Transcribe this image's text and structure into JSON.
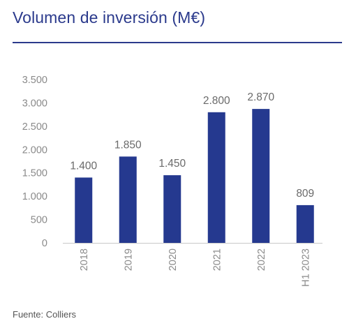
{
  "title": "Volumen de inversión (M€)",
  "source": "Fuente: Colliers",
  "colors": {
    "bar": "#25398f",
    "title": "#2b3a8c",
    "tick_text": "#8a8a8a",
    "label_text": "#6a6a6a",
    "axis": "#c8c8c8"
  },
  "chart_data": {
    "type": "bar",
    "categories": [
      "2018",
      "2019",
      "2020",
      "2021",
      "2022",
      "H1 2023"
    ],
    "values": [
      1400,
      1850,
      1450,
      2800,
      2870,
      809
    ],
    "data_labels": [
      "1.400",
      "1.850",
      "1.450",
      "2.800",
      "2.870",
      "809"
    ],
    "yticks": [
      0,
      500,
      1000,
      1500,
      2000,
      2500,
      3000,
      3500
    ],
    "ytick_labels": [
      "0",
      "500",
      "1.000",
      "1.500",
      "2.000",
      "2.500",
      "3.000",
      "3.500"
    ],
    "ylim": [
      0,
      3500
    ],
    "x_label_rotation": "vertical",
    "grid": false,
    "legend": false
  }
}
